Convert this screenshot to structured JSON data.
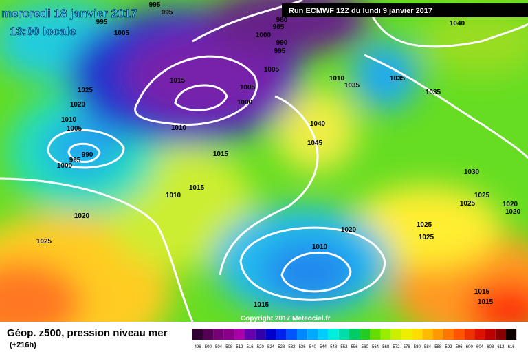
{
  "header": {
    "date": "mercredi 18 janvier 2017",
    "time": "13:00 locale",
    "run": "Run ECMWF 12Z du lundi 9 janvier 2017"
  },
  "isobar_labels": [
    "995",
    "995",
    "995",
    "1005",
    "1000",
    "990",
    "995",
    "985",
    "980",
    "1040",
    "1005",
    "1015",
    "1005",
    "1010",
    "1035",
    "1035",
    "1025",
    "1020",
    "1000",
    "1035",
    "1010",
    "1005",
    "1010",
    "1040",
    "1045",
    "990",
    "995",
    "1000",
    "1015",
    "1030",
    "1015",
    "1010",
    "1025",
    "1025",
    "1020",
    "1020",
    "1020",
    "1025",
    "1020",
    "1025",
    "1025",
    "1010",
    "1015",
    "1015",
    "1015"
  ],
  "copyright": "Copyright 2017 Meteociel.fr",
  "footer": {
    "title": "Géop. z500, pression niveau mer",
    "lead": "(+216h)"
  },
  "colorbar": {
    "labels": [
      496,
      500,
      504,
      508,
      512,
      516,
      520,
      524,
      528,
      532,
      536,
      540,
      544,
      548,
      552,
      556,
      560,
      564,
      568,
      572,
      576,
      580,
      584,
      588,
      592,
      596,
      600,
      604,
      608,
      612,
      616
    ]
  }
}
